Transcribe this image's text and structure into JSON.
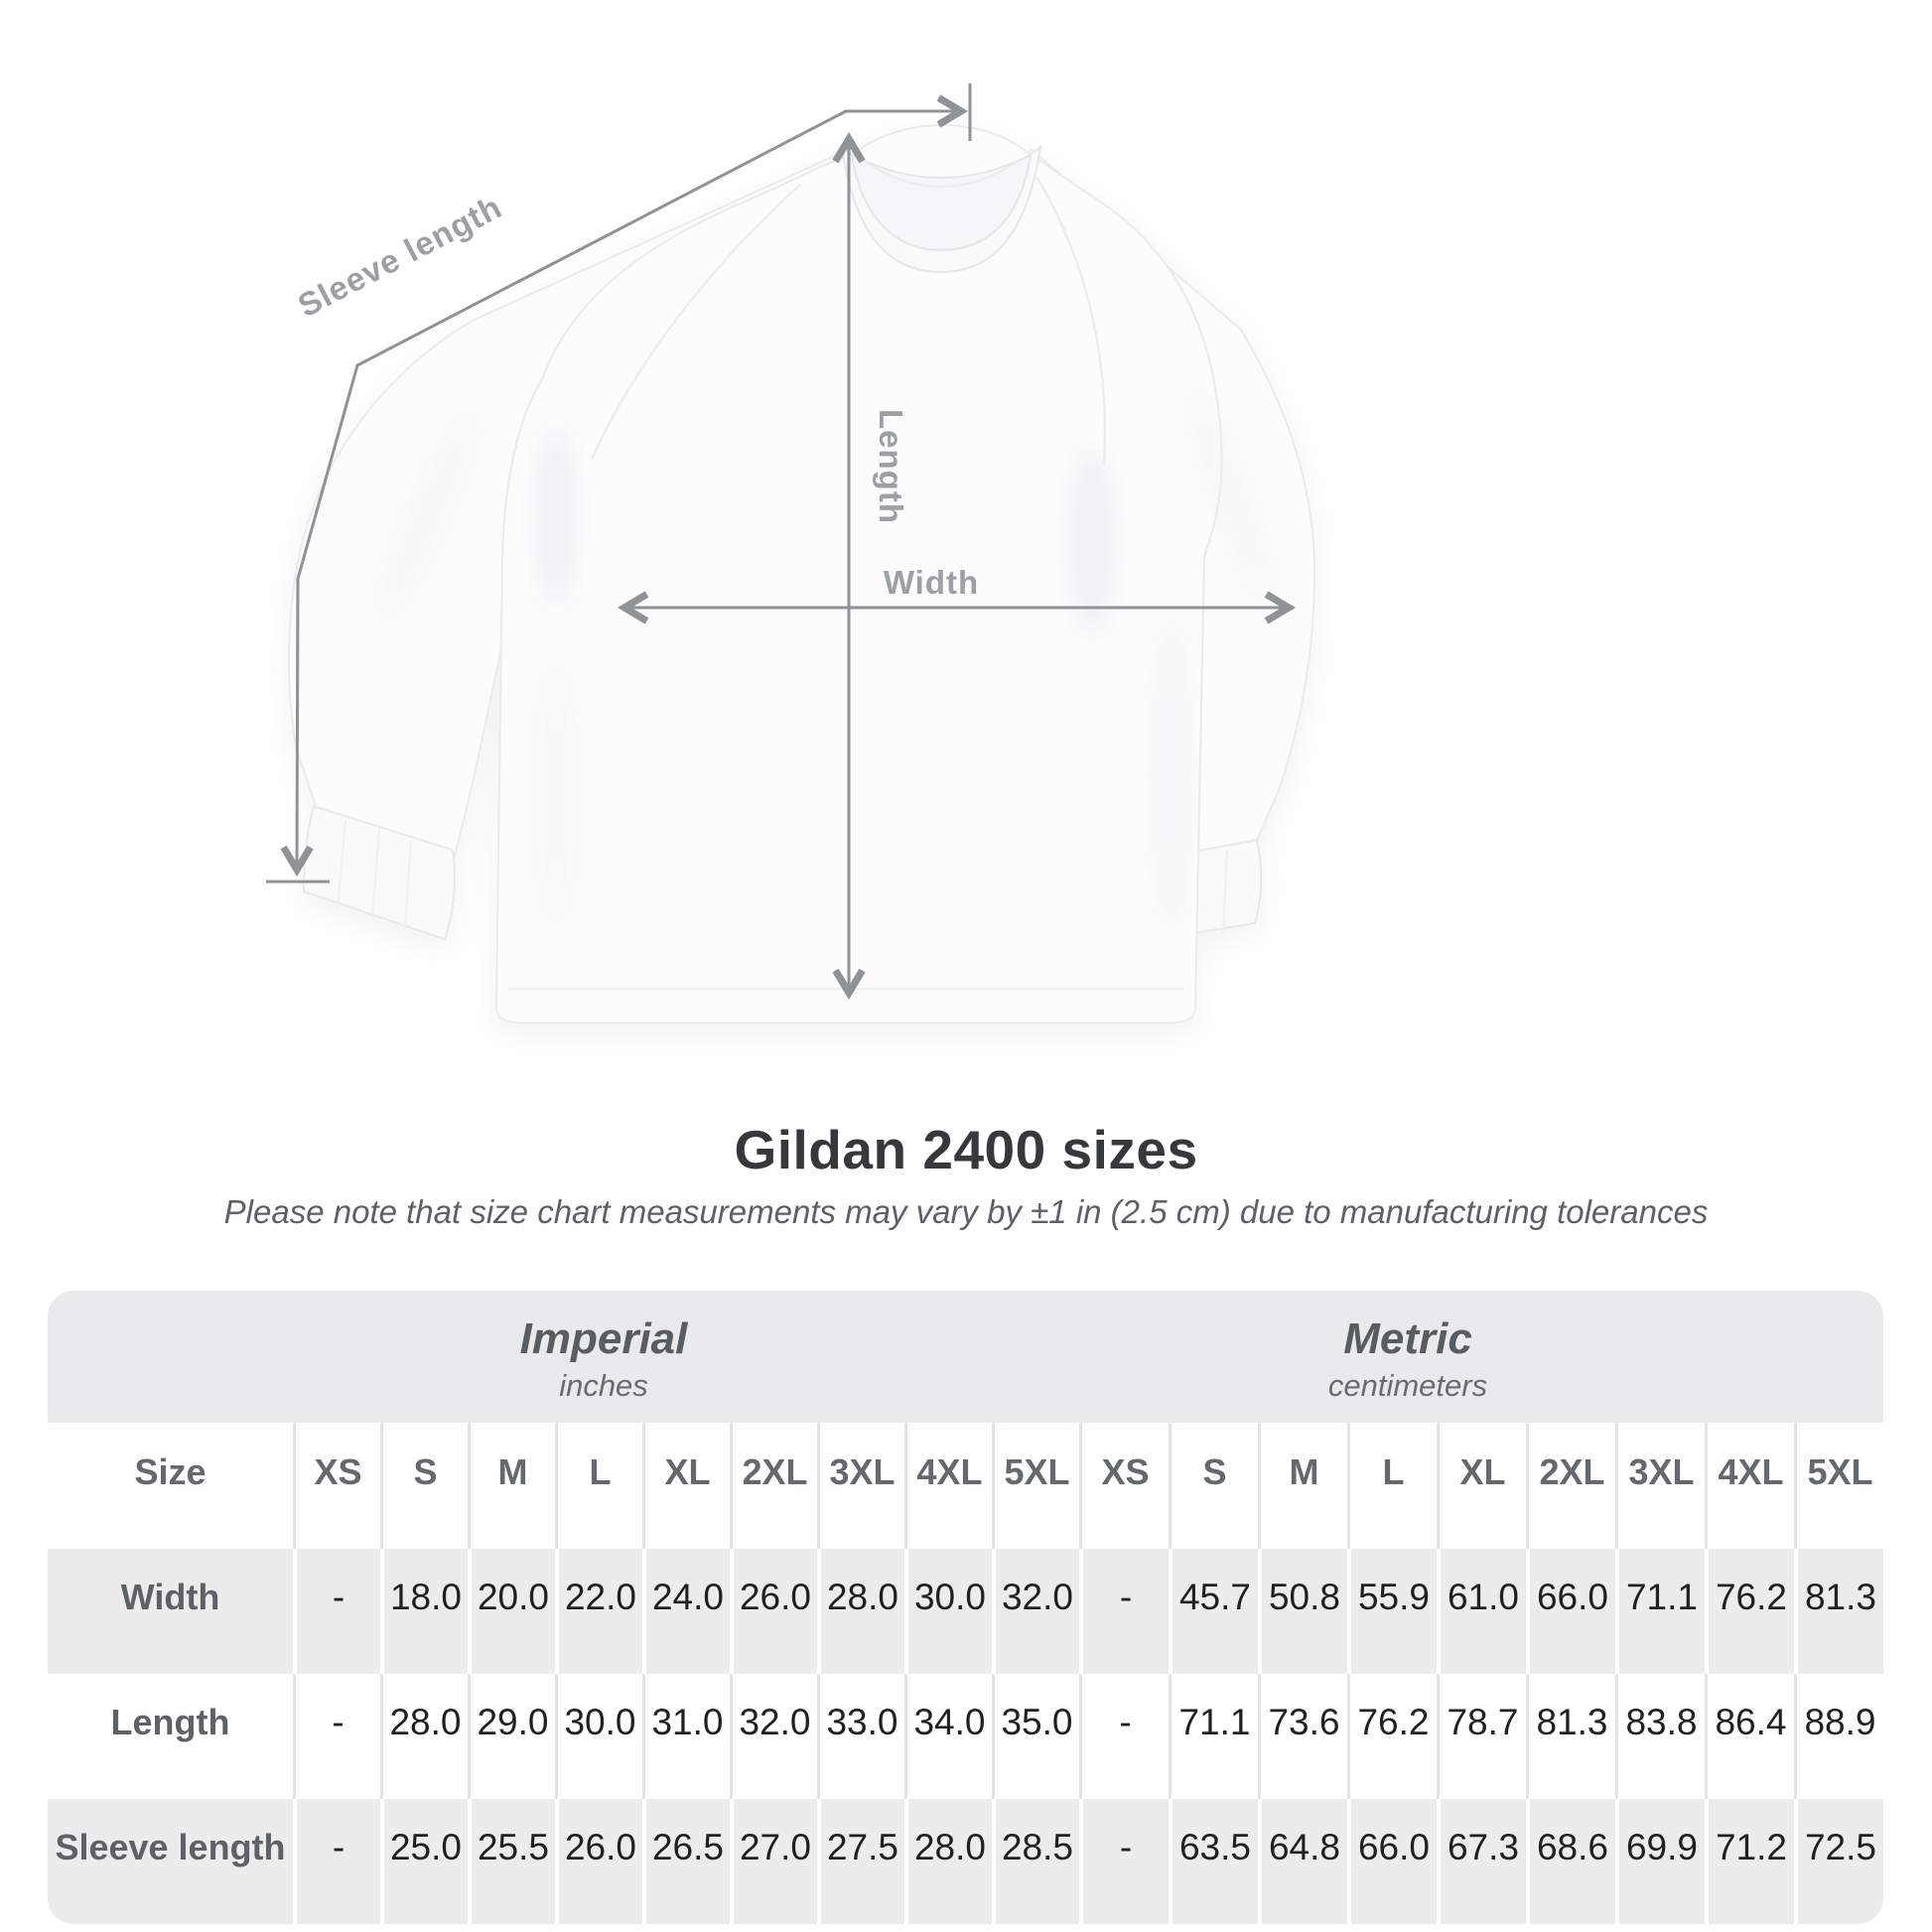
{
  "diagram": {
    "labels": {
      "sleeve_length": "Sleeve length",
      "length": "Length",
      "width": "Width"
    },
    "arrow_color": "#8e9398",
    "label_color": "#9aa0a5",
    "shirt_color": "#fcfcfd"
  },
  "header": {
    "title": "Gildan 2400 sizes",
    "subtitle": "Please note that size chart measurements may vary by ±1 in (2.5 cm) due to manufacturing tolerances"
  },
  "table": {
    "size_header_label": "Size",
    "unit_groups": [
      {
        "name": "Imperial",
        "unit": "inches"
      },
      {
        "name": "Metric",
        "unit": "centimeters"
      }
    ],
    "sizes": [
      "XS",
      "S",
      "M",
      "L",
      "XL",
      "2XL",
      "3XL",
      "4XL",
      "5XL"
    ],
    "rows": [
      {
        "label": "Width",
        "imperial": [
          "-",
          "18.0",
          "20.0",
          "22.0",
          "24.0",
          "26.0",
          "28.0",
          "30.0",
          "32.0"
        ],
        "metric": [
          "-",
          "45.7",
          "50.8",
          "55.9",
          "61.0",
          "66.0",
          "71.1",
          "76.2",
          "81.3"
        ]
      },
      {
        "label": "Length",
        "imperial": [
          "-",
          "28.0",
          "29.0",
          "30.0",
          "31.0",
          "32.0",
          "33.0",
          "34.0",
          "35.0"
        ],
        "metric": [
          "-",
          "71.1",
          "73.6",
          "76.2",
          "78.7",
          "81.3",
          "83.8",
          "86.4",
          "88.9"
        ]
      },
      {
        "label": "Sleeve length",
        "imperial": [
          "-",
          "25.0",
          "25.5",
          "26.0",
          "26.5",
          "27.0",
          "27.5",
          "28.0",
          "28.5"
        ],
        "metric": [
          "-",
          "63.5",
          "64.8",
          "66.0",
          "67.3",
          "68.6",
          "69.9",
          "71.2",
          "72.5"
        ]
      }
    ],
    "colors": {
      "band_bg": "#e9eaeb",
      "row_alt_bg": "#ececed",
      "header_text": "#63696e",
      "value_text": "#1e2022"
    }
  }
}
